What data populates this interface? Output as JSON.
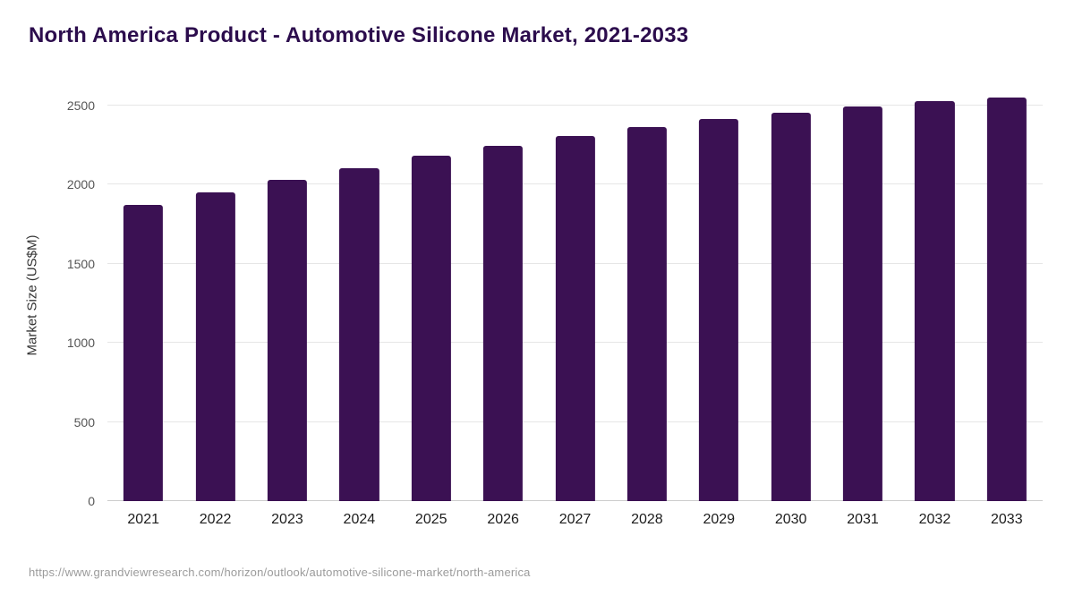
{
  "title": "North America Product - Automotive Silicone Market, 2021-2033",
  "source_url": "https://www.grandviewresearch.com/horizon/outlook/automotive-silicone-market/north-america",
  "colors": {
    "bar": "#3b1153",
    "title": "#2c0d4d",
    "grid": "#e6e6e6",
    "axis_text": "#555555"
  },
  "chart_data": {
    "type": "bar",
    "title": "North America Product - Automotive Silicone Market, 2021-2033",
    "categories": [
      "2021",
      "2022",
      "2023",
      "2024",
      "2025",
      "2026",
      "2027",
      "2028",
      "2029",
      "2030",
      "2031",
      "2032",
      "2033"
    ],
    "values": [
      1870,
      1950,
      2030,
      2105,
      2180,
      2245,
      2305,
      2360,
      2415,
      2455,
      2490,
      2525,
      2550
    ],
    "xlabel": "",
    "ylabel": "Market Size (US$M)",
    "ylim": [
      0,
      2600
    ],
    "yticks": [
      0,
      500,
      1000,
      1500,
      2000,
      2500
    ],
    "grid": true,
    "legend": false,
    "bar_slot_fraction": 0.55
  }
}
